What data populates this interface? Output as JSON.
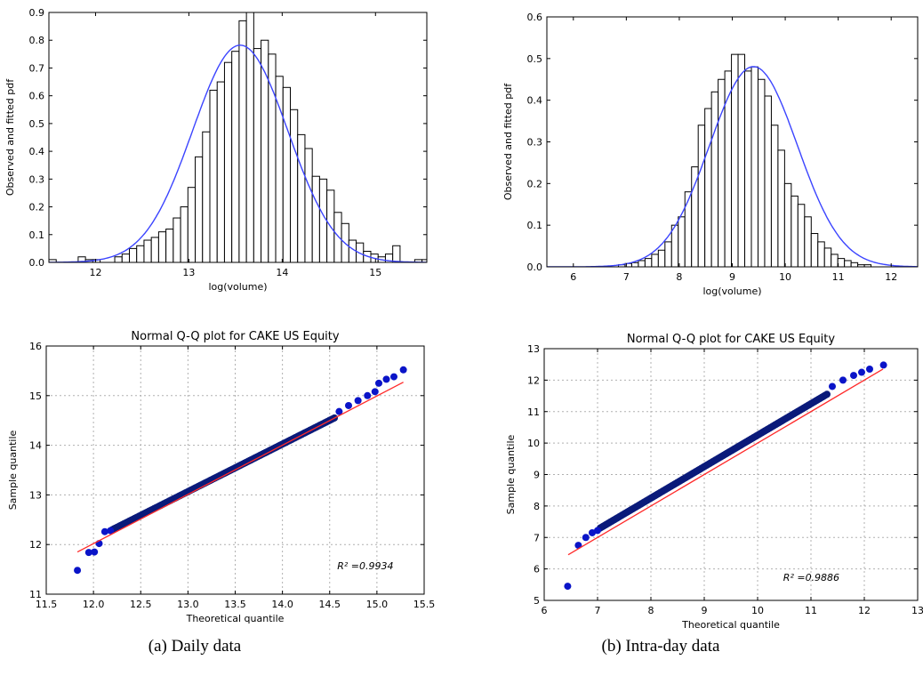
{
  "captions": [
    "(a) Daily data",
    "(b) Intra-day data"
  ],
  "colors": {
    "bar_fill": "#ffffff",
    "bar_stroke": "#000000",
    "pdf_line": "#3b44ff",
    "qq_point": "#0a14c8",
    "qq_line": "#ff2a2a",
    "grid": "#b0b0b0"
  },
  "chart_data": [
    {
      "type": "bar",
      "title": "",
      "xlabel": "log(volume)",
      "ylabel": "Observed and fitted pdf",
      "xlim": [
        11.5,
        15.55
      ],
      "ylim": [
        0,
        0.9
      ],
      "xticks": [
        12,
        13,
        14,
        15
      ],
      "yticks": [
        0.0,
        0.1,
        0.2,
        0.3,
        0.4,
        0.5,
        0.6,
        0.7,
        0.8,
        0.9
      ],
      "grid": false,
      "bins": {
        "start": 11.5,
        "width": 0.0784
      },
      "values": [
        0.01,
        0.0,
        0.0,
        0.0,
        0.02,
        0.01,
        0.01,
        0.0,
        0.0,
        0.02,
        0.03,
        0.05,
        0.06,
        0.08,
        0.09,
        0.11,
        0.12,
        0.16,
        0.2,
        0.27,
        0.38,
        0.47,
        0.62,
        0.65,
        0.72,
        0.76,
        0.87,
        0.9,
        0.77,
        0.8,
        0.75,
        0.67,
        0.63,
        0.55,
        0.46,
        0.41,
        0.31,
        0.3,
        0.26,
        0.18,
        0.14,
        0.08,
        0.07,
        0.04,
        0.03,
        0.02,
        0.03,
        0.06,
        0.0,
        0.0,
        0.01,
        0.01
      ],
      "fit": {
        "name": "normal pdf",
        "mean": 13.55,
        "sd": 0.51
      }
    },
    {
      "type": "bar",
      "title": "",
      "xlabel": "log(volume)",
      "ylabel": "Observed and fitted pdf",
      "xlim": [
        5.5,
        12.5
      ],
      "ylim": [
        0,
        0.6
      ],
      "xticks": [
        6,
        7,
        8,
        9,
        10,
        11,
        12
      ],
      "yticks": [
        0.0,
        0.1,
        0.2,
        0.3,
        0.4,
        0.5,
        0.6
      ],
      "grid": false,
      "bins": {
        "start": 6.6,
        "width": 0.1255
      },
      "values": [
        0.0,
        0.0,
        0.005,
        0.008,
        0.01,
        0.015,
        0.02,
        0.03,
        0.04,
        0.06,
        0.1,
        0.12,
        0.18,
        0.24,
        0.34,
        0.38,
        0.42,
        0.45,
        0.47,
        0.51,
        0.51,
        0.47,
        0.48,
        0.45,
        0.41,
        0.34,
        0.28,
        0.2,
        0.17,
        0.15,
        0.12,
        0.08,
        0.06,
        0.045,
        0.03,
        0.02,
        0.015,
        0.01,
        0.005,
        0.005
      ],
      "fit": {
        "name": "normal pdf",
        "mean": 9.4,
        "sd": 0.83
      }
    },
    {
      "type": "scatter",
      "title": "Normal Q-Q plot for CAKE US Equity",
      "xlabel": "Theoretical quantile",
      "ylabel": "Sample quantile",
      "xlim": [
        11.5,
        15.5
      ],
      "ylim": [
        11,
        16
      ],
      "xticks": [
        "11.5",
        "12.0",
        "12.5",
        "13.0",
        "13.5",
        "14.0",
        "14.5",
        "15.0",
        "15.5"
      ],
      "yticks": [
        11,
        12,
        13,
        14,
        15,
        16
      ],
      "grid": true,
      "annotation": "R² =0.9934",
      "fit_line": {
        "x": [
          11.83,
          15.28
        ],
        "y": [
          11.85,
          15.27
        ]
      },
      "points": {
        "x": [
          11.83,
          11.95,
          12.01,
          12.06,
          12.12,
          12.18,
          14.6,
          14.7,
          14.8,
          14.9,
          14.98,
          15.02,
          15.1,
          15.18,
          15.28
        ],
        "y": [
          11.48,
          11.84,
          11.85,
          12.02,
          12.26,
          12.28,
          14.68,
          14.8,
          14.9,
          15.0,
          15.08,
          15.25,
          15.33,
          15.38,
          15.52
        ]
      },
      "dense_band": {
        "x": [
          12.2,
          14.55
        ],
        "y": [
          12.3,
          14.55
        ]
      }
    },
    {
      "type": "scatter",
      "title": "Normal Q-Q plot for CAKE US Equity",
      "xlabel": "Theoretical quantile",
      "ylabel": "Sample quantile",
      "xlim": [
        6,
        13
      ],
      "ylim": [
        5,
        13
      ],
      "xticks": [
        6,
        7,
        8,
        9,
        10,
        11,
        12,
        13
      ],
      "yticks": [
        5,
        6,
        7,
        8,
        9,
        10,
        11,
        12,
        13
      ],
      "grid": true,
      "annotation": "R² =0.9886",
      "fit_line": {
        "x": [
          6.45,
          12.35
        ],
        "y": [
          6.45,
          12.35
        ]
      },
      "points": {
        "x": [
          6.44,
          6.64,
          6.78,
          6.9,
          7.0,
          11.4,
          11.6,
          11.8,
          11.95,
          12.1,
          12.36
        ],
        "y": [
          5.45,
          6.75,
          7.0,
          7.15,
          7.22,
          11.8,
          12.0,
          12.15,
          12.25,
          12.35,
          12.48
        ]
      },
      "dense_band": {
        "x": [
          7.05,
          11.3
        ],
        "y": [
          7.3,
          11.55
        ]
      }
    }
  ]
}
